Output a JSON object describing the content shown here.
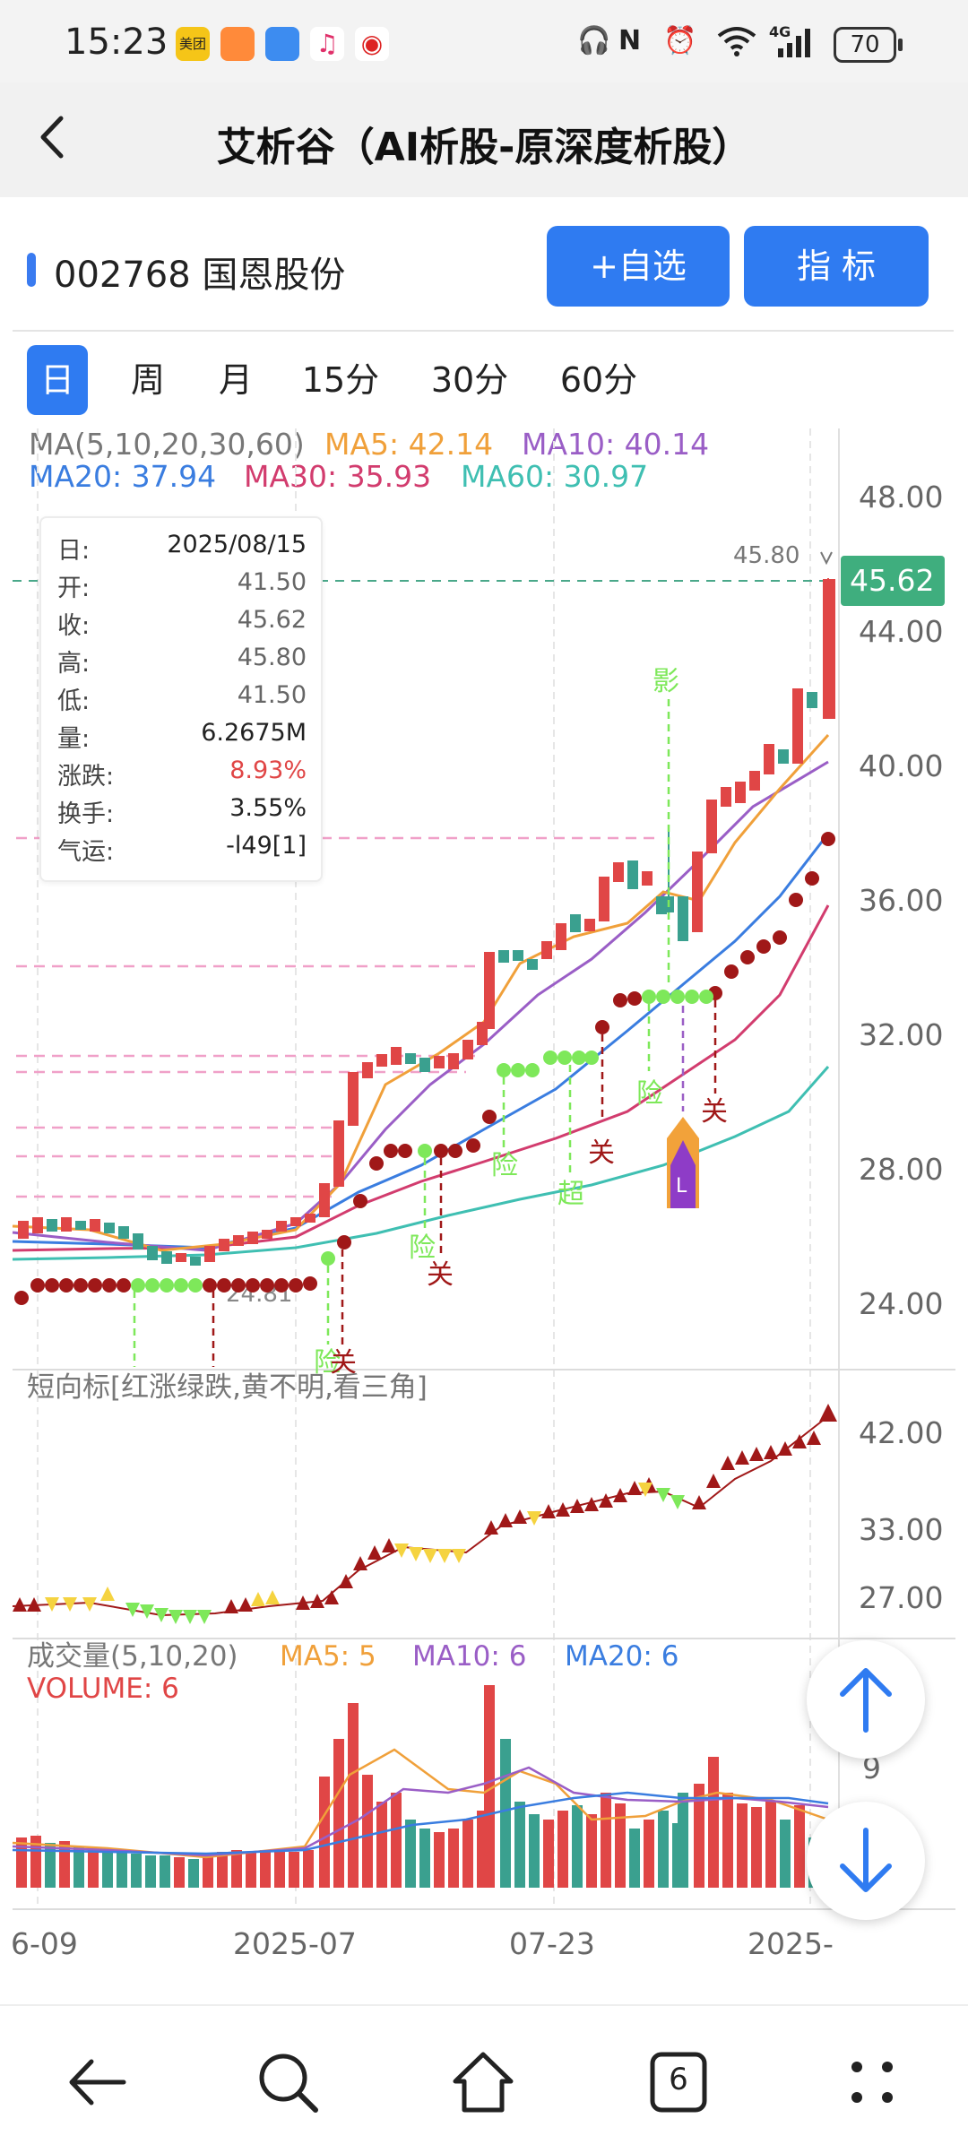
{
  "status_bar": {
    "time": "15:23",
    "app_icons": [
      "meituan-icon",
      "taobao-icon",
      "chat-icon",
      "music-icon",
      "bank-icon"
    ],
    "app_icon_labels": [
      "美团",
      "",
      "",
      "",
      ""
    ],
    "right_icons": [
      "headphones-icon",
      "nfc-icon",
      "alarm-icon",
      "wifi-icon",
      "signal-icon"
    ],
    "network": "4G",
    "battery": "70"
  },
  "header": {
    "title": "艾析谷（AI析股-原深度析股）",
    "back_icon": "chevron-left-icon"
  },
  "stock": {
    "code_name": "002768 国恩股份",
    "add_watch_label": "+自选",
    "indicator_label": "指  标"
  },
  "period_tabs": [
    {
      "label": "日",
      "active": true
    },
    {
      "label": "周",
      "active": false
    },
    {
      "label": "月",
      "active": false
    },
    {
      "label": "15分",
      "active": false
    },
    {
      "label": "30分",
      "active": false
    },
    {
      "label": "60分",
      "active": false
    }
  ],
  "ma_legend": {
    "title": "MA(5,10,20,30,60)",
    "ma5": "MA5: 42.14",
    "ma10": "MA10: 40.14",
    "ma20": "MA20: 37.94",
    "ma30": "MA30: 35.93",
    "ma60": "MA60: 30.97"
  },
  "info_box": {
    "rows": [
      {
        "k": "日:",
        "v": "2025/08/15"
      },
      {
        "k": "开:",
        "v": "41.50"
      },
      {
        "k": "收:",
        "v": "45.62"
      },
      {
        "k": "高:",
        "v": "45.80"
      },
      {
        "k": "低:",
        "v": "41.50"
      },
      {
        "k": "量:",
        "v": "6.2675M"
      },
      {
        "k": "涨跌:",
        "v": "8.93%"
      },
      {
        "k": "换手:",
        "v": "3.55%"
      },
      {
        "k": "气运:",
        "v": "-l49[1]"
      }
    ]
  },
  "price_axis": {
    "ticks": [
      "48.00",
      "44.00",
      "40.00",
      "36.00",
      "32.00",
      "28.00",
      "24.00"
    ],
    "last_price": "45.62",
    "high_label": "45.80",
    "low_label": "24.81"
  },
  "signal_labels": [
    "影",
    "险",
    "关",
    "超",
    "险",
    "关",
    "险",
    "关",
    "险",
    "关",
    "L"
  ],
  "short_indicator": {
    "title": "短向标[红涨绿跌,黄不明,看三角]",
    "ticks": [
      "42.00",
      "33.00",
      "27.00"
    ]
  },
  "volume": {
    "title": "成交量(5,10,20)",
    "ma5": "MA5: 5",
    "ma10": "MA10: 6",
    "ma20": "MA20: 6",
    "volume": "VOLUME: 6",
    "tick": "9"
  },
  "x_axis": {
    "labels": [
      "6-09",
      "2025-07",
      "07-23",
      "2025-"
    ]
  },
  "fab": {
    "up_icon": "arrow-up-icon",
    "down_icon": "arrow-down-icon"
  },
  "nav": {
    "icons": [
      "back-arrow-icon",
      "search-icon",
      "home-icon",
      "tabs-icon",
      "menu-dots-icon"
    ],
    "tabs_count": "6"
  },
  "colors": {
    "accent": "#2f7bf1",
    "up": "#e04646",
    "down": "#3aa08f",
    "ma5": "#f0a03a",
    "ma10": "#9a5ec6",
    "ma20": "#3a7de0",
    "ma30": "#d23c6e",
    "ma60": "#3fbfb2",
    "signal_green": "#7ee85a",
    "dot_red": "#a01818"
  }
}
